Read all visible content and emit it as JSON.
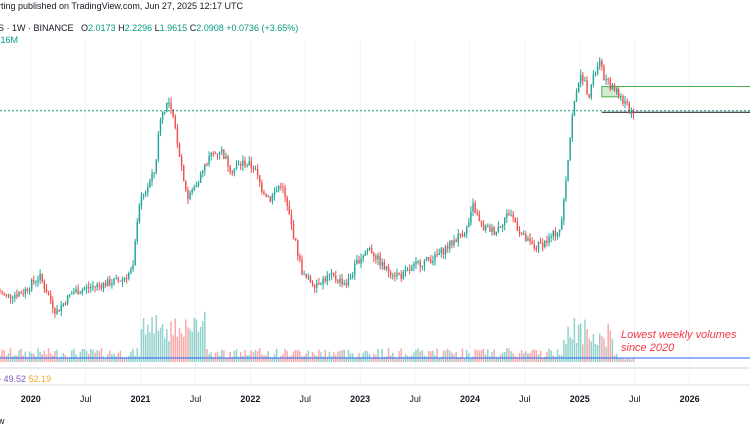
{
  "header": {
    "published": "rting published on TradingView.com, Jun 27, 2025 12:17 UTC",
    "symbol": "S · 1W · BINANCE",
    "o_label": "O",
    "o_val": "2.0173",
    "h_label": "H",
    "h_val": "2.2296",
    "l_label": "L",
    "l_val": "1.9615",
    "c_label": "C",
    "c_val": "2.0908",
    "change": "+0.0736 (+3.65%)",
    "volume": ".16M"
  },
  "rsi": {
    "value_a": "49.52",
    "value_b": "52.19"
  },
  "annotation": "Lowest weekly volumes since 2020",
  "footer": "w",
  "colors": {
    "up": "#26a69a",
    "down": "#ef5350",
    "support": "#2962ff",
    "zone": "#4caf50",
    "price_line": "#089981"
  },
  "chart_data": {
    "type": "candlestick",
    "x_ticks": [
      {
        "label": "2020",
        "bold": true
      },
      {
        "label": "Jul",
        "bold": false
      },
      {
        "label": "2021",
        "bold": true
      },
      {
        "label": "Jul",
        "bold": false
      },
      {
        "label": "2022",
        "bold": true
      },
      {
        "label": "Jul",
        "bold": false
      },
      {
        "label": "2023",
        "bold": true
      },
      {
        "label": "Jul",
        "bold": false
      },
      {
        "label": "2024",
        "bold": true
      },
      {
        "label": "Jul",
        "bold": false
      },
      {
        "label": "2025",
        "bold": true
      },
      {
        "label": "Jul",
        "bold": false
      },
      {
        "label": "2026",
        "bold": true
      }
    ],
    "price_path": [
      [
        2019.6,
        0.18
      ],
      [
        2019.8,
        0.15
      ],
      [
        2019.95,
        0.16
      ],
      [
        2020.1,
        0.2
      ],
      [
        2020.25,
        0.12
      ],
      [
        2020.4,
        0.16
      ],
      [
        2020.55,
        0.17
      ],
      [
        2020.7,
        0.18
      ],
      [
        2020.85,
        0.19
      ],
      [
        2020.95,
        0.22
      ],
      [
        2021.0,
        0.55
      ],
      [
        2021.08,
        0.7
      ],
      [
        2021.15,
        0.9
      ],
      [
        2021.2,
        1.9
      ],
      [
        2021.27,
        2.4
      ],
      [
        2021.33,
        1.7
      ],
      [
        2021.4,
        0.9
      ],
      [
        2021.45,
        0.6
      ],
      [
        2021.55,
        0.8
      ],
      [
        2021.65,
        1.1
      ],
      [
        2021.75,
        1.2
      ],
      [
        2021.85,
        0.9
      ],
      [
        2021.95,
        1.0
      ],
      [
        2022.05,
        0.95
      ],
      [
        2022.12,
        0.7
      ],
      [
        2022.2,
        0.6
      ],
      [
        2022.3,
        0.75
      ],
      [
        2022.38,
        0.45
      ],
      [
        2022.5,
        0.2
      ],
      [
        2022.6,
        0.18
      ],
      [
        2022.75,
        0.2
      ],
      [
        2022.9,
        0.18
      ],
      [
        2023.0,
        0.25
      ],
      [
        2023.1,
        0.3
      ],
      [
        2023.25,
        0.22
      ],
      [
        2023.4,
        0.2
      ],
      [
        2023.55,
        0.24
      ],
      [
        2023.7,
        0.26
      ],
      [
        2023.85,
        0.32
      ],
      [
        2024.0,
        0.4
      ],
      [
        2024.05,
        0.55
      ],
      [
        2024.12,
        0.4
      ],
      [
        2024.25,
        0.38
      ],
      [
        2024.38,
        0.5
      ],
      [
        2024.5,
        0.35
      ],
      [
        2024.6,
        0.3
      ],
      [
        2024.72,
        0.33
      ],
      [
        2024.85,
        0.4
      ],
      [
        2024.9,
        0.9
      ],
      [
        2024.95,
        1.9
      ],
      [
        2025.0,
        3.2
      ],
      [
        2025.05,
        3.4
      ],
      [
        2025.1,
        2.6
      ],
      [
        2025.15,
        3.5
      ],
      [
        2025.2,
        4.1
      ],
      [
        2025.25,
        3.2
      ],
      [
        2025.3,
        3.0
      ],
      [
        2025.35,
        2.7
      ],
      [
        2025.4,
        2.5
      ],
      [
        2025.45,
        2.2
      ],
      [
        2025.48,
        2.09
      ]
    ],
    "resistance_zone": {
      "x_start": 2025.2,
      "x_end": 2026.45,
      "y_bottom": 2.55,
      "y_top": 2.95
    },
    "current_price": 2.0908,
    "annotation": "Lowest weekly volumes since 2020"
  }
}
